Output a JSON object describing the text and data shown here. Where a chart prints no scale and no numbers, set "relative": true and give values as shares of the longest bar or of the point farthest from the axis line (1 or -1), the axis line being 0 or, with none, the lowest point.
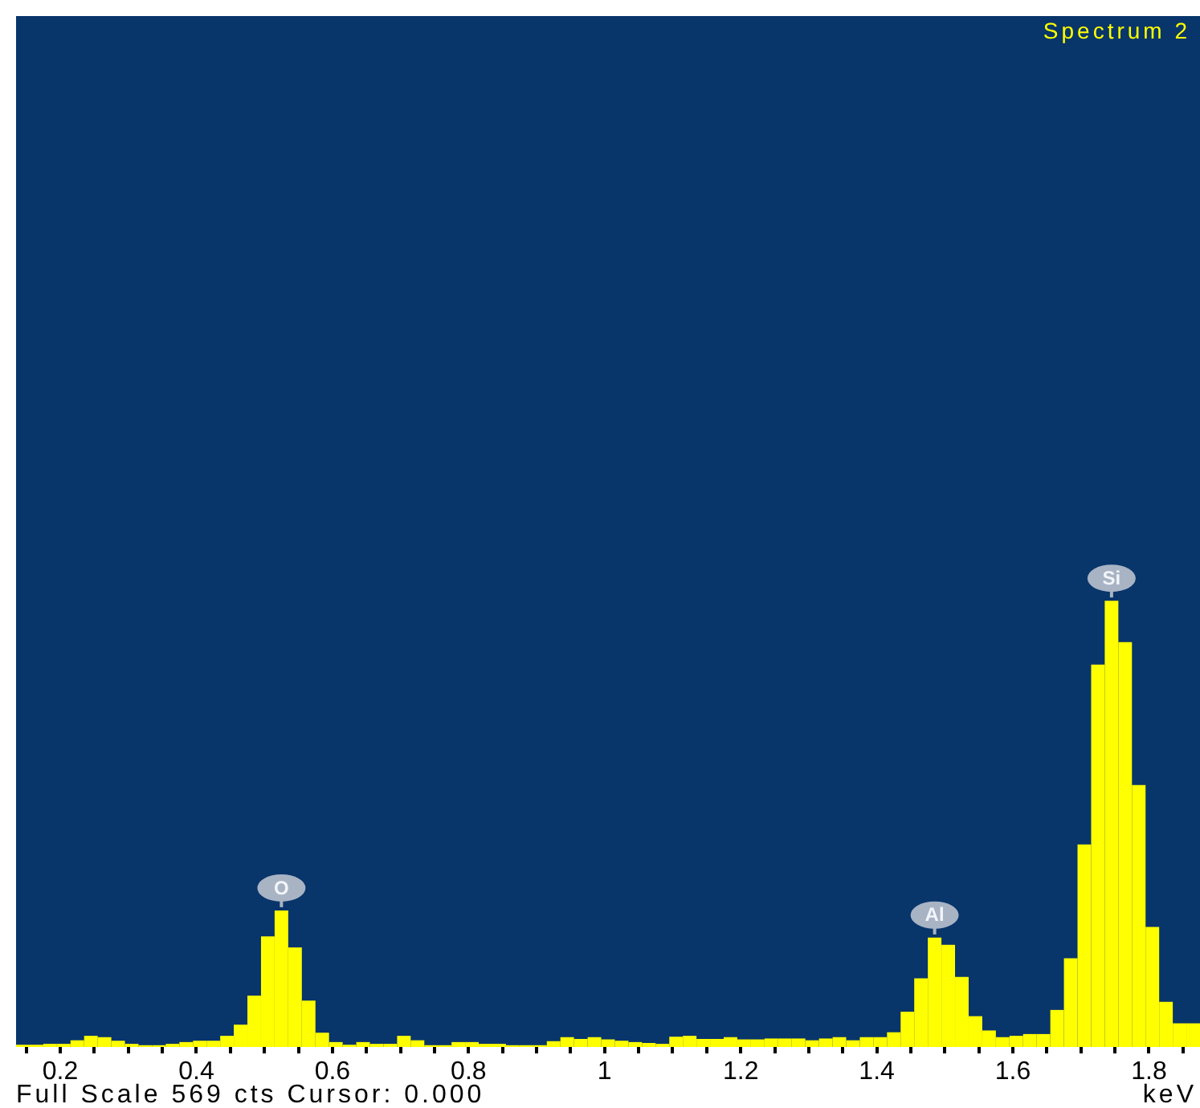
{
  "chart_data": {
    "type": "bar",
    "title": "Spectrum 2",
    "xlabel": "keV",
    "annotations": [
      {
        "text": "O",
        "x": 0.525,
        "y": 0.306
      },
      {
        "text": "Al",
        "x": 1.485,
        "y": 0.245
      },
      {
        "text": "Si",
        "x": 1.745,
        "y": 1
      },
      "Full Scale 569 cts Cursor: 0.000"
    ],
    "relative": true,
    "color": "#ffff00",
    "tick_labels": "x",
    "xlim": [
      0.135,
      1.875
    ],
    "xticks": [
      {
        "value": 0.15,
        "label": null
      },
      0.2,
      {
        "value": 0.25,
        "label": null
      },
      {
        "value": 0.3,
        "label": null
      },
      {
        "value": 0.35,
        "label": null
      },
      0.4,
      {
        "value": 0.45,
        "label": null
      },
      {
        "value": 0.5,
        "label": null
      },
      {
        "value": 0.55,
        "label": null
      },
      0.6,
      {
        "value": 0.65,
        "label": null
      },
      {
        "value": 0.7,
        "label": null
      },
      {
        "value": 0.75,
        "label": null
      },
      0.8,
      {
        "value": 0.85,
        "label": null
      },
      {
        "value": 0.9,
        "label": null
      },
      {
        "value": 0.95,
        "label": null
      },
      1,
      {
        "value": 1.05,
        "label": null
      },
      {
        "value": 1.1,
        "label": null
      },
      {
        "value": 1.15,
        "label": null
      },
      1.2,
      {
        "value": 1.25,
        "label": null
      },
      {
        "value": 1.3,
        "label": null
      },
      {
        "value": 1.35,
        "label": null
      },
      1.4,
      {
        "value": 1.45,
        "label": null
      },
      {
        "value": 1.5,
        "label": null
      },
      {
        "value": 1.55,
        "label": null
      },
      1.6,
      {
        "value": 1.65,
        "label": null
      },
      {
        "value": 1.7,
        "label": null
      },
      {
        "value": 1.75,
        "label": null
      },
      1.8,
      {
        "value": 1.85,
        "label": null
      }
    ],
    "x": [
      0.145,
      0.165,
      0.185,
      0.205,
      0.225,
      0.245,
      0.265,
      0.285,
      0.305,
      0.325,
      0.345,
      0.365,
      0.385,
      0.405,
      0.425,
      0.445,
      0.465,
      0.485,
      0.505,
      0.525,
      0.545,
      0.565,
      0.585,
      0.605,
      0.625,
      0.645,
      0.665,
      0.685,
      0.705,
      0.725,
      0.745,
      0.765,
      0.785,
      0.805,
      0.825,
      0.845,
      0.865,
      0.885,
      0.905,
      0.925,
      0.945,
      0.965,
      0.985,
      1.005,
      1.025,
      1.045,
      1.065,
      1.085,
      1.105,
      1.125,
      1.145,
      1.165,
      1.185,
      1.205,
      1.225,
      1.245,
      1.265,
      1.285,
      1.305,
      1.325,
      1.345,
      1.365,
      1.385,
      1.405,
      1.425,
      1.445,
      1.465,
      1.485,
      1.505,
      1.525,
      1.545,
      1.565,
      1.585,
      1.605,
      1.625,
      1.645,
      1.665,
      1.685,
      1.705,
      1.725,
      1.745,
      1.765,
      1.785,
      1.805,
      1.825,
      1.845,
      1.865
    ],
    "values": [
      0.005,
      0.005,
      0.007,
      0.007,
      0.015,
      0.025,
      0.022,
      0.014,
      0.007,
      0.004,
      0.004,
      0.007,
      0.011,
      0.014,
      0.014,
      0.025,
      0.05,
      0.115,
      0.248,
      0.306,
      0.223,
      0.104,
      0.032,
      0.011,
      0.005,
      0.011,
      0.007,
      0.007,
      0.025,
      0.015,
      0.004,
      0.004,
      0.011,
      0.011,
      0.007,
      0.007,
      0.004,
      0.004,
      0.004,
      0.013,
      0.022,
      0.018,
      0.022,
      0.017,
      0.014,
      0.011,
      0.009,
      0.007,
      0.023,
      0.025,
      0.018,
      0.018,
      0.022,
      0.017,
      0.017,
      0.019,
      0.019,
      0.019,
      0.015,
      0.019,
      0.022,
      0.015,
      0.022,
      0.022,
      0.033,
      0.079,
      0.154,
      0.245,
      0.229,
      0.157,
      0.069,
      0.037,
      0.022,
      0.025,
      0.029,
      0.029,
      0.083,
      0.199,
      0.454,
      0.857,
      1,
      0.907,
      0.587,
      0.269,
      0.101,
      0.053,
      0.053
    ]
  }
}
